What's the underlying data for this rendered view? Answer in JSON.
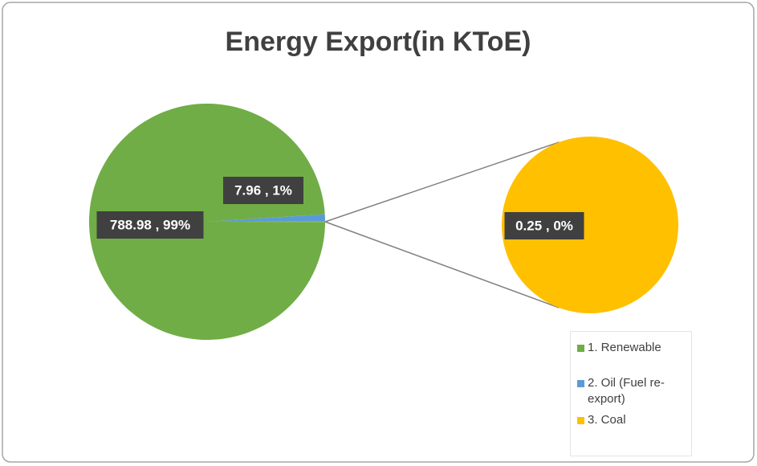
{
  "chart_data": {
    "type": "pie-of-pie",
    "title": "Energy Export(in KToE)",
    "categories": [
      "1. Renewable",
      "2. Oil (Fuel re-export)",
      "3. Coal"
    ],
    "values": [
      788.98,
      7.96,
      0.25
    ],
    "value_labels": [
      "788.98 , 99%",
      "7.96 , 1%",
      "0.25 , 0%"
    ],
    "colors": [
      "#70ad47",
      "#5b9bd5",
      "#ffc000"
    ]
  }
}
